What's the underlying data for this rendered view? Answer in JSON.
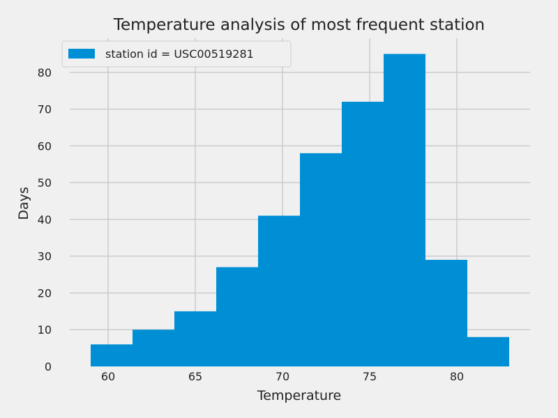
{
  "chart_data": {
    "type": "bar",
    "subtype": "histogram",
    "title": "Temperature analysis of most frequent station",
    "xlabel": "Temperature",
    "ylabel": "Days",
    "bins": [
      {
        "start": 59.0,
        "end": 61.4,
        "value": 6
      },
      {
        "start": 61.4,
        "end": 63.8,
        "value": 10
      },
      {
        "start": 63.8,
        "end": 66.2,
        "value": 15
      },
      {
        "start": 66.2,
        "end": 68.6,
        "value": 27
      },
      {
        "start": 68.6,
        "end": 71.0,
        "value": 41
      },
      {
        "start": 71.0,
        "end": 73.4,
        "value": 58
      },
      {
        "start": 73.4,
        "end": 75.8,
        "value": 72
      },
      {
        "start": 75.8,
        "end": 78.2,
        "value": 85
      },
      {
        "start": 78.2,
        "end": 80.6,
        "value": 29
      },
      {
        "start": 80.6,
        "end": 83.0,
        "value": 8
      }
    ],
    "series": [
      {
        "name": "station id = USC00519281",
        "color": "#008fd5"
      }
    ],
    "xlim": [
      57.8,
      84.2
    ],
    "ylim": [
      0,
      89.25
    ],
    "xticks": [
      60,
      65,
      70,
      75,
      80
    ],
    "yticks": [
      0,
      10,
      20,
      30,
      40,
      50,
      60,
      70,
      80
    ],
    "grid": true,
    "legend_position": "top-left",
    "background_color": "#f0f0f0",
    "grid_color": "#cbcbcb"
  }
}
